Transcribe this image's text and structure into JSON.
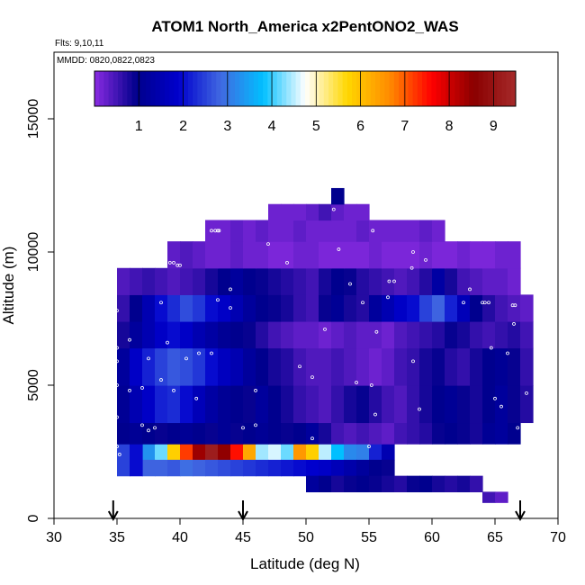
{
  "chart_data": {
    "type": "heatmap",
    "title": "ATOM1 North_America x2PentONO2_WAS",
    "subtitle_flights": "Flts: 9,10,11",
    "subtitle_dates": "MMDD: 0820,0822,0823",
    "xlabel": "Latitude (deg N)",
    "ylabel": "Altitude (m)",
    "xlim": [
      30,
      70
    ],
    "ylim": [
      0,
      17500
    ],
    "xticks": [
      "30",
      "35",
      "40",
      "45",
      "50",
      "55",
      "60",
      "65",
      "70"
    ],
    "yticks": [
      "0",
      "5000",
      "10000",
      "15000"
    ],
    "colorbar": {
      "range": [
        0,
        9.5
      ],
      "ticks": [
        "1",
        "2",
        "3",
        "4",
        "5",
        "6",
        "7",
        "8",
        "9"
      ],
      "colors": [
        "#8a2be2",
        "#00008b",
        "#0000cd",
        "#4169e1",
        "#00bfff",
        "#ffffff",
        "#ffd700",
        "#ff8c00",
        "#ff0000",
        "#8b0000",
        "#a52a2a"
      ]
    },
    "arrow_latitudes": [
      34.7,
      45,
      67
    ],
    "cells": [
      {
        "lat_range": [
          37,
          49
        ],
        "alt_range": [
          2200,
          2800
        ],
        "values": [
          3.3,
          4.2,
          5.8,
          7.2,
          8.4,
          9.2,
          8.5,
          7.5,
          6.3,
          4.4,
          4.6,
          4.2
        ]
      },
      {
        "lat_range": [
          49,
          57
        ],
        "alt_range": [
          2200,
          2800
        ],
        "values": [
          6.5,
          5.8,
          4.5,
          3.8,
          3.2,
          3.1,
          2.2,
          1.5
        ]
      },
      {
        "lat_range": [
          37,
          57
        ],
        "alt_range": [
          1600,
          2200
        ],
        "values": [
          2.8,
          2.8,
          2.7,
          2.9,
          2.8,
          2.7,
          2.6,
          2.5,
          2.4,
          2.3,
          2.2,
          2.1,
          2.0,
          1.9,
          1.8,
          1.6,
          1.4,
          1.2,
          1.0,
          0.9
        ]
      },
      {
        "lat_range": [
          35,
          37
        ],
        "alt_range": [
          1600,
          2800
        ],
        "values": [
          2.5,
          2.0
        ]
      },
      {
        "lat_range": [
          50,
          64
        ],
        "alt_range": [
          1000,
          1600
        ],
        "values": [
          1.2,
          1.0,
          0.8,
          0.9,
          1.0,
          0.9,
          0.8,
          0.7,
          0.9,
          1.0,
          0.8,
          0.7,
          0.8,
          0.6
        ]
      },
      {
        "lat_range": [
          35,
          67
        ],
        "alt_range": [
          2800,
          3600
        ],
        "values": [
          1.0,
          1.1,
          1.0,
          0.9,
          1.0,
          1.1,
          1.0,
          0.9,
          1.1,
          0.9,
          1.0,
          1.1,
          1.0,
          0.9,
          1.0,
          1.2,
          0.8,
          0.5,
          0.4,
          0.5,
          0.4,
          0.3,
          0.5,
          0.6,
          0.7,
          0.9,
          1.0,
          0.9,
          0.8,
          1.1,
          1.2,
          1.0
        ]
      },
      {
        "lat_range": [
          35,
          68
        ],
        "alt_range": [
          3600,
          5000
        ],
        "values": [
          1.1,
          1.5,
          1.8,
          2.2,
          2.3,
          2.0,
          1.6,
          1.3,
          1.1,
          1.0,
          0.9,
          1.2,
          1.0,
          0.8,
          0.6,
          0.5,
          0.4,
          0.6,
          0.8,
          0.9,
          0.7,
          0.5,
          0.4,
          0.6,
          0.8,
          1.0,
          1.1,
          0.9,
          0.8,
          1.0,
          1.2,
          0.9,
          0.7
        ]
      },
      {
        "lat_range": [
          35,
          68
        ],
        "alt_range": [
          5000,
          6400
        ],
        "values": [
          1.2,
          1.8,
          2.2,
          2.5,
          2.7,
          2.6,
          2.4,
          2.0,
          1.7,
          1.5,
          1.2,
          1.0,
          0.8,
          0.7,
          0.5,
          0.4,
          0.4,
          0.5,
          0.4,
          0.3,
          0.2,
          0.3,
          0.5,
          0.6,
          0.8,
          0.9,
          0.7,
          0.6,
          0.8,
          1.0,
          1.1,
          0.9,
          0.6
        ]
      },
      {
        "lat_range": [
          35,
          68
        ],
        "alt_range": [
          6400,
          7400
        ],
        "values": [
          0.8,
          1.2,
          1.5,
          1.8,
          2.0,
          1.8,
          1.5,
          1.3,
          1.1,
          1.0,
          0.9,
          0.7,
          0.5,
          0.4,
          0.3,
          0.3,
          0.2,
          0.3,
          0.4,
          0.3,
          0.3,
          0.2,
          0.4,
          0.5,
          0.6,
          0.7,
          0.9,
          0.8,
          0.6,
          0.5,
          0.6,
          0.7,
          0.5
        ]
      },
      {
        "lat_range": [
          35,
          68
        ],
        "alt_range": [
          7400,
          8400
        ],
        "values": [
          0.6,
          1.0,
          1.5,
          2.0,
          2.3,
          2.6,
          2.4,
          2.0,
          1.8,
          1.5,
          1.2,
          1.0,
          0.9,
          0.8,
          0.6,
          0.5,
          0.9,
          1.1,
          0.8,
          0.7,
          1.2,
          1.5,
          1.8,
          2.0,
          2.5,
          2.8,
          2.2,
          1.6,
          1.0,
          0.7,
          0.5,
          0.4,
          0.3
        ]
      },
      {
        "lat_range": [
          35,
          67
        ],
        "alt_range": [
          8400,
          9400
        ],
        "values": [
          0.4,
          0.5,
          0.6,
          0.5,
          0.4,
          0.5,
          0.6,
          0.8,
          1.0,
          1.2,
          1.0,
          0.9,
          0.8,
          0.7,
          0.6,
          0.5,
          0.8,
          1.0,
          0.9,
          0.7,
          0.6,
          0.5,
          0.4,
          0.5,
          0.7,
          1.3,
          0.8,
          0.5,
          0.4,
          0.3,
          0.3,
          0.2
        ]
      },
      {
        "lat_range": [
          39,
          67
        ],
        "alt_range": [
          9400,
          10400
        ],
        "values": [
          0.3,
          0.4,
          0.3,
          0.2,
          0.2,
          0.3,
          0.2,
          0.2,
          0.1,
          0.1,
          0.2,
          0.2,
          0.1,
          0.1,
          0.1,
          0.1,
          0.2,
          0.1,
          0.1,
          0.1,
          0.2,
          0.1,
          0.1,
          0.2,
          0.1,
          0.1,
          0.2,
          0.2
        ]
      },
      {
        "lat_range": [
          42,
          61
        ],
        "alt_range": [
          10400,
          11200
        ],
        "values": [
          0.2,
          0.2,
          0.3,
          0.2,
          0.3,
          0.2,
          0.2,
          0.3,
          0.2,
          0.2,
          0.2,
          0.2,
          0.3,
          0.2,
          0.2,
          0.2,
          0.2,
          0.3,
          0.2
        ]
      },
      {
        "lat_range": [
          47,
          55
        ],
        "alt_range": [
          11200,
          11800
        ],
        "values": [
          0.2,
          0.2,
          0.2,
          0.3,
          0.5,
          0.3,
          0.2,
          0.2
        ]
      },
      {
        "lat_range": [
          52,
          53
        ],
        "alt_range": [
          11800,
          12400
        ],
        "values": [
          1.0
        ]
      },
      {
        "lat_range": [
          64,
          66
        ],
        "alt_range": [
          600,
          1000
        ],
        "values": [
          0.5,
          0.3
        ]
      }
    ],
    "sample_points": [
      [
        34.7,
        8200
      ],
      [
        34.7,
        8600
      ],
      [
        35,
        7800
      ],
      [
        35,
        5900
      ],
      [
        35,
        6400
      ],
      [
        35,
        5000
      ],
      [
        35,
        3800
      ],
      [
        35,
        2700
      ],
      [
        35.2,
        2400
      ],
      [
        36,
        4800
      ],
      [
        36,
        6700
      ],
      [
        37,
        3500
      ],
      [
        37.5,
        3300
      ],
      [
        38,
        3400
      ],
      [
        37,
        4900
      ],
      [
        37.5,
        6000
      ],
      [
        38.5,
        5200
      ],
      [
        39,
        6600
      ],
      [
        38.5,
        8100
      ],
      [
        39.5,
        4800
      ],
      [
        40.5,
        6000
      ],
      [
        41.3,
        4500
      ],
      [
        41.5,
        6200
      ],
      [
        43,
        8200
      ],
      [
        44,
        8600
      ],
      [
        42.5,
        6200
      ],
      [
        44,
        7900
      ],
      [
        45,
        3400
      ],
      [
        46,
        3500
      ],
      [
        46,
        4800
      ],
      [
        47,
        10300
      ],
      [
        42.5,
        10800
      ],
      [
        42.8,
        10800
      ],
      [
        43,
        10800
      ],
      [
        43.1,
        10800
      ],
      [
        39.2,
        9600
      ],
      [
        39.5,
        9600
      ],
      [
        39.8,
        9500
      ],
      [
        40,
        9500
      ],
      [
        48.5,
        9600
      ],
      [
        49.5,
        5700
      ],
      [
        50.5,
        5300
      ],
      [
        50.5,
        3000
      ],
      [
        51.5,
        7100
      ],
      [
        52.2,
        11600
      ],
      [
        52.6,
        10100
      ],
      [
        53.5,
        8800
      ],
      [
        54,
        5100
      ],
      [
        54.5,
        8100
      ],
      [
        55.3,
        10800
      ],
      [
        55.5,
        3900
      ],
      [
        55,
        2700
      ],
      [
        55.2,
        5000
      ],
      [
        55.6,
        7000
      ],
      [
        56.5,
        8300
      ],
      [
        56.6,
        8900
      ],
      [
        57,
        8900
      ],
      [
        58.5,
        10000
      ],
      [
        58.5,
        5900
      ],
      [
        59,
        4100
      ],
      [
        60.5,
        2000
      ],
      [
        60.5,
        1800
      ],
      [
        60.5,
        2500
      ],
      [
        59.5,
        9700
      ],
      [
        61.5,
        2500
      ],
      [
        62.5,
        8100
      ],
      [
        63,
        8600
      ],
      [
        64,
        8100
      ],
      [
        64.2,
        8100
      ],
      [
        64.5,
        8100
      ],
      [
        64.7,
        6400
      ],
      [
        65,
        4500
      ],
      [
        65,
        2500
      ],
      [
        65.5,
        4200
      ],
      [
        65.3,
        1100
      ],
      [
        66,
        6200
      ],
      [
        66.4,
        8000
      ],
      [
        66.6,
        8000
      ],
      [
        66.5,
        7300
      ],
      [
        66.8,
        3400
      ],
      [
        67.5,
        2900
      ],
      [
        68.5,
        10400
      ],
      [
        68.7,
        6000
      ],
      [
        67.5,
        4700
      ],
      [
        58.4,
        9400
      ]
    ]
  }
}
